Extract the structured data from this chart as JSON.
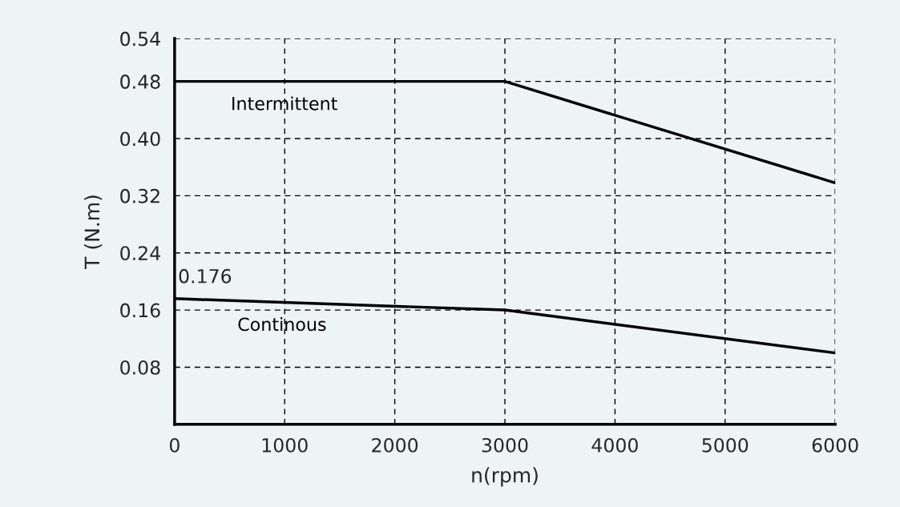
{
  "chart_data": {
    "type": "line",
    "xlabel": "n(rpm)",
    "ylabel": "T (N.m)",
    "x": [
      0,
      3000,
      6000
    ],
    "series": [
      {
        "name": "Intermittent",
        "color": "#000000",
        "values": [
          0.48,
          0.48,
          0.338
        ]
      },
      {
        "name": "Continous",
        "color": "#000000",
        "values": [
          0.176,
          0.16,
          0.1
        ]
      }
    ],
    "xlim": [
      0,
      6000
    ],
    "xticks": [
      0,
      1000,
      2000,
      3000,
      4000,
      5000,
      6000
    ],
    "ylim": [
      0,
      0.54
    ],
    "yticks": [
      {
        "value": 0.08,
        "label": "0.08"
      },
      {
        "value": 0.16,
        "label": "0.16"
      },
      {
        "value": 0.24,
        "label": "0.24"
      },
      {
        "value": 0.32,
        "label": "0.32"
      },
      {
        "value": 0.4,
        "label": "0.40"
      },
      {
        "value": 0.48,
        "label": "0.48"
      },
      {
        "value": 0.54,
        "label": "0.54"
      }
    ],
    "annotations": [
      {
        "text": "0.176",
        "x": 0,
        "y": 0.176
      }
    ],
    "grid": true,
    "legend": false,
    "line_style": "solid",
    "marker": "none"
  }
}
